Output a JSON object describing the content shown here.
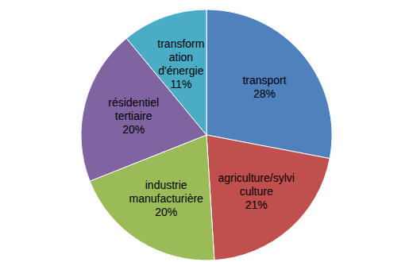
{
  "chart_data": {
    "type": "pie",
    "categories": [
      "transport",
      "agriculture/sylviculture",
      "industrie manufacturière",
      "résidentiel tertiaire",
      "transformation d'énergie"
    ],
    "values": [
      28,
      21,
      20,
      20,
      11
    ],
    "value_labels": [
      "28%",
      "21%",
      "20%",
      "20%",
      "11%"
    ],
    "colors": [
      "#4f81bd",
      "#c0504d",
      "#9bbb59",
      "#8064a2",
      "#4bacc6"
    ],
    "data_labels": true
  }
}
